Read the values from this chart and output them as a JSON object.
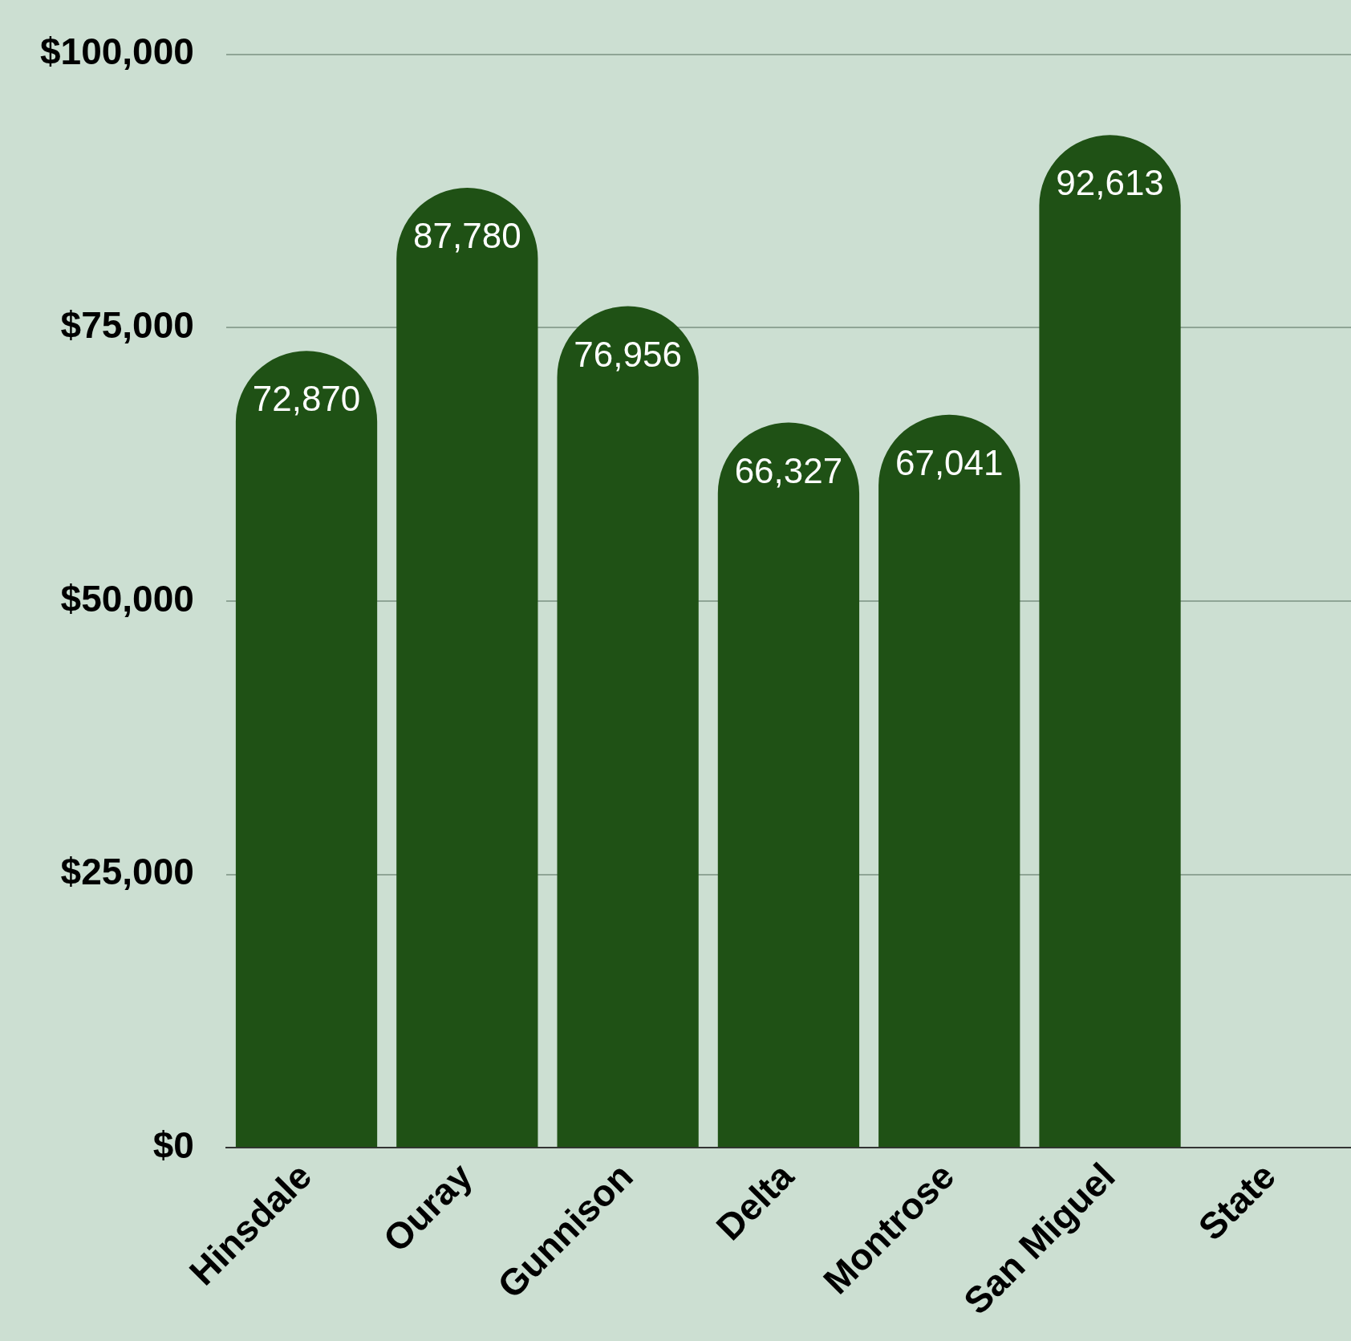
{
  "chart_data": {
    "type": "bar",
    "categories": [
      "Hinsdale",
      "Ouray",
      "Gunnison",
      "Delta",
      "Montrose",
      "San Miguel",
      "State"
    ],
    "values": [
      72870,
      87780,
      76956,
      66327,
      67041,
      92613,
      null
    ],
    "color": "#1f5115",
    "ylim": [
      0,
      100000
    ],
    "yticks": [
      {
        "value": 0,
        "label": "$0"
      },
      {
        "value": 25000,
        "label": "$25,000"
      },
      {
        "value": 50000,
        "label": "$50,000"
      },
      {
        "value": 75000,
        "label": "$75,000"
      },
      {
        "value": 100000,
        "label": "$100,000"
      }
    ],
    "value_labels": [
      "72,870",
      "87,780",
      "76,956",
      "66,327",
      "67,041",
      "92,613",
      null
    ],
    "grid": "y",
    "legend": false
  }
}
